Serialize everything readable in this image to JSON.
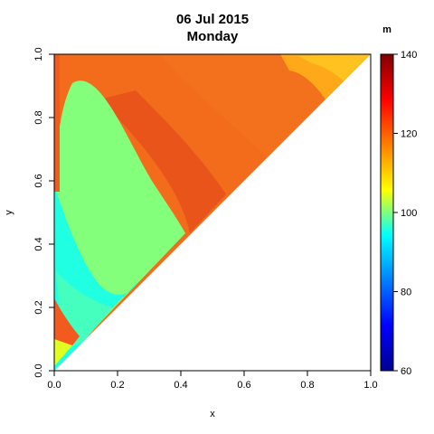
{
  "chart_data": {
    "type": "heatmap",
    "title": "06 Jul 2015",
    "subtitle": "Monday",
    "xlabel": "x",
    "ylabel": "y",
    "xlim": [
      0.0,
      1.0
    ],
    "ylim": [
      0.0,
      1.0
    ],
    "x_ticks": [
      "0.0",
      "0.2",
      "0.4",
      "0.6",
      "0.8",
      "1.0"
    ],
    "y_ticks": [
      "0.0",
      "0.2",
      "0.4",
      "0.6",
      "0.8",
      "1.0"
    ],
    "domain": "upper triangle y >= x",
    "grid": false,
    "colorbar": {
      "label": "m",
      "range": [
        60,
        140
      ],
      "ticks": [
        "60",
        "80",
        "100",
        "120",
        "140"
      ],
      "colormap": [
        "#00008F",
        "#0000FF",
        "#00FFFF",
        "#7FFF7F",
        "#FFFF00",
        "#FF7F00",
        "#FF0000",
        "#7F0000"
      ]
    },
    "regions": [
      {
        "name": "upper body",
        "approx_value": 122,
        "color": "#F26C1C"
      },
      {
        "name": "ridge near diagonal",
        "approx_value": 124,
        "color": "#E8541A"
      },
      {
        "name": "upper-right corner",
        "approx_value": 114,
        "color": "#FFB400"
      },
      {
        "name": "central lobe",
        "approx_value": 100,
        "color": "#83FF7C"
      },
      {
        "name": "lower-left band",
        "approx_value": 92,
        "color": "#21FFE2"
      },
      {
        "name": "left-edge strip",
        "approx_value": 124,
        "color": "#F25A1E"
      },
      {
        "name": "bottom-left corner",
        "approx_value": 108,
        "color": "#E0FF1E"
      }
    ]
  }
}
